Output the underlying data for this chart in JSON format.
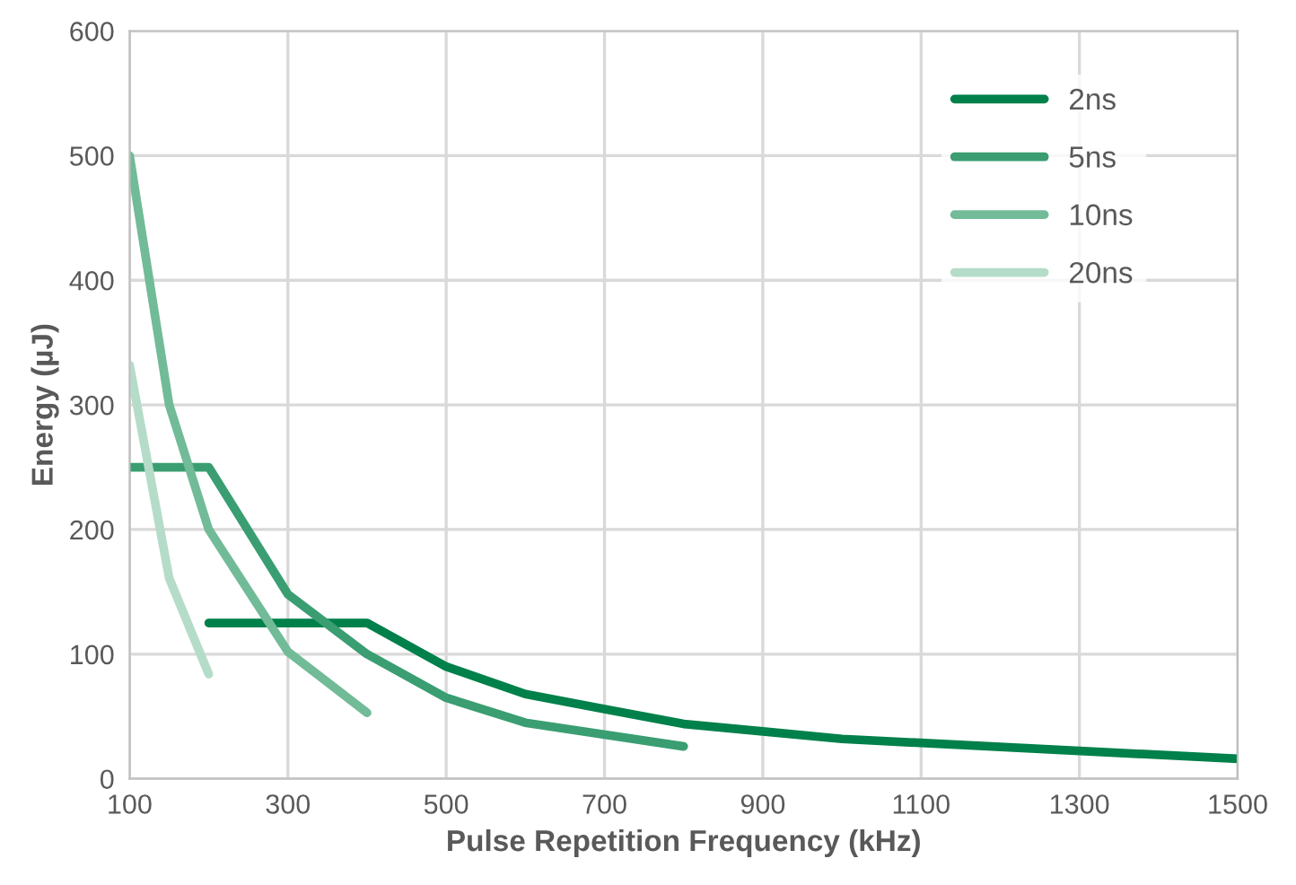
{
  "chart_data": {
    "type": "line",
    "xlabel": "Pulse Repetition Frequency (kHz)",
    "ylabel": "Energy (µJ)",
    "xlim": [
      100,
      1500
    ],
    "xticks": [
      100,
      300,
      500,
      700,
      900,
      1100,
      1300,
      1500
    ],
    "ylim": [
      0,
      600
    ],
    "yticks": [
      0,
      100,
      200,
      300,
      400,
      500,
      600
    ],
    "grid": true,
    "legend": "top right",
    "marker": "none",
    "line_style": "solid",
    "series": [
      {
        "name": "2ns",
        "color": "#00804a",
        "x": [
          200,
          400,
          500,
          600,
          700,
          800,
          900,
          1000,
          1500
        ],
        "values": [
          125,
          125,
          90,
          68,
          56,
          44,
          38,
          32,
          16
        ]
      },
      {
        "name": "5ns",
        "color": "#3a9e72",
        "x": [
          100,
          200,
          300,
          400,
          500,
          600,
          800
        ],
        "values": [
          250,
          250,
          148,
          100,
          65,
          45,
          26
        ]
      },
      {
        "name": "10ns",
        "color": "#72bb98",
        "x": [
          100,
          150,
          200,
          300,
          400
        ],
        "values": [
          500,
          300,
          200,
          102,
          53
        ]
      },
      {
        "name": "20ns",
        "color": "#b5dcc9",
        "x": [
          100,
          150,
          200
        ],
        "values": [
          332,
          161,
          84
        ]
      }
    ]
  }
}
